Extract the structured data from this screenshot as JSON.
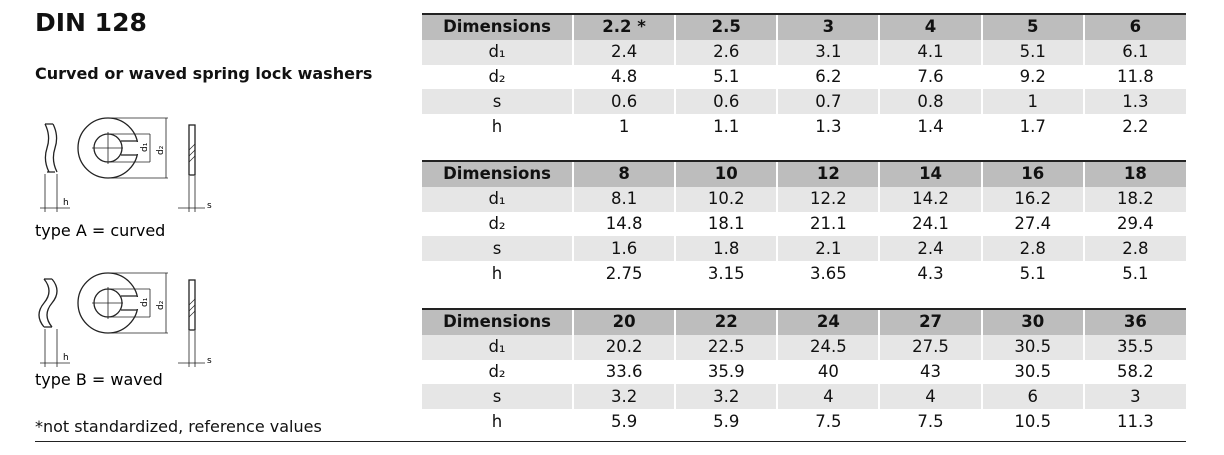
{
  "header": {
    "title": "DIN 128",
    "subtitle": "Curved or waved spring lock washers"
  },
  "figures": [
    {
      "caption": "type A = curved",
      "labels": {
        "d1": "d₁",
        "d2": "d₂",
        "h": "h",
        "s": "s"
      }
    },
    {
      "caption": "type B = waved",
      "labels": {
        "d1": "d₁",
        "d2": "d₂",
        "h": "h",
        "s": "s"
      }
    }
  ],
  "footnote": "*not standardized, reference values",
  "tables": [
    {
      "columns": [
        "Dimensions",
        "2.2 *",
        "2.5",
        "3",
        "4",
        "5",
        "6"
      ],
      "rows": [
        [
          "d₁",
          "2.4",
          "2.6",
          "3.1",
          "4.1",
          "5.1",
          "6.1"
        ],
        [
          "d₂",
          "4.8",
          "5.1",
          "6.2",
          "7.6",
          "9.2",
          "11.8"
        ],
        [
          "s",
          "0.6",
          "0.6",
          "0.7",
          "0.8",
          "1",
          "1.3"
        ],
        [
          "h",
          "1",
          "1.1",
          "1.3",
          "1.4",
          "1.7",
          "2.2"
        ]
      ]
    },
    {
      "columns": [
        "Dimensions",
        "8",
        "10",
        "12",
        "14",
        "16",
        "18"
      ],
      "rows": [
        [
          "d₁",
          "8.1",
          "10.2",
          "12.2",
          "14.2",
          "16.2",
          "18.2"
        ],
        [
          "d₂",
          "14.8",
          "18.1",
          "21.1",
          "24.1",
          "27.4",
          "29.4"
        ],
        [
          "s",
          "1.6",
          "1.8",
          "2.1",
          "2.4",
          "2.8",
          "2.8"
        ],
        [
          "h",
          "2.75",
          "3.15",
          "3.65",
          "4.3",
          "5.1",
          "5.1"
        ]
      ]
    },
    {
      "columns": [
        "Dimensions",
        "20",
        "22",
        "24",
        "27",
        "30",
        "36"
      ],
      "rows": [
        [
          "d₁",
          "20.2",
          "22.5",
          "24.5",
          "27.5",
          "30.5",
          "35.5"
        ],
        [
          "d₂",
          "33.6",
          "35.9",
          "40",
          "43",
          "30.5",
          "58.2"
        ],
        [
          "s",
          "3.2",
          "3.2",
          "4",
          "4",
          "6",
          "3"
        ],
        [
          "h",
          "5.9",
          "5.9",
          "7.5",
          "7.5",
          "10.5",
          "11.3"
        ]
      ]
    }
  ]
}
